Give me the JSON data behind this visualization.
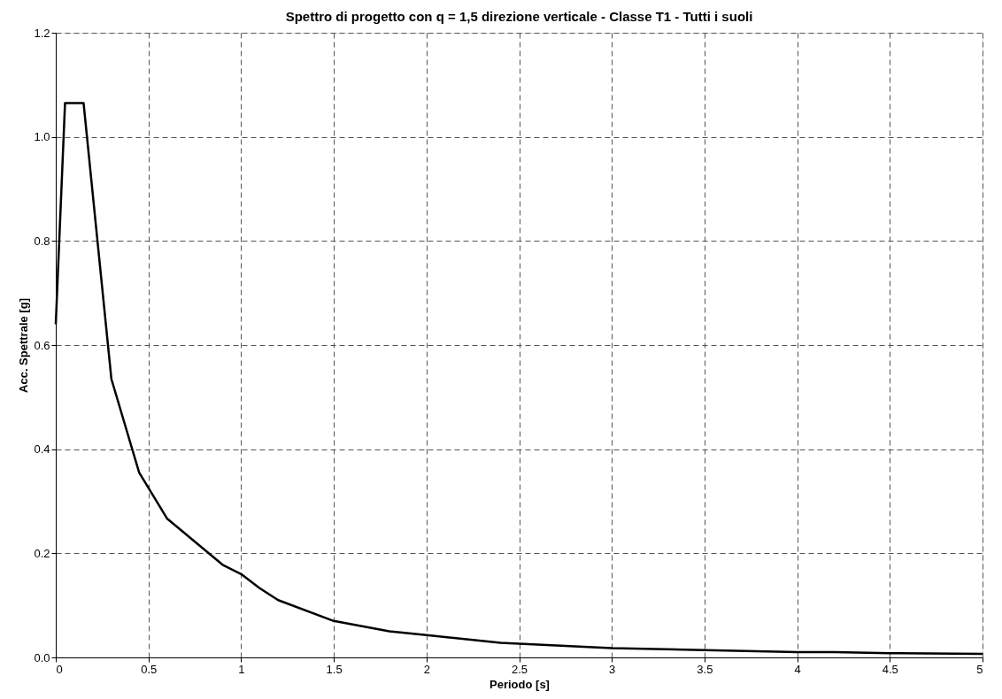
{
  "chart_data": {
    "type": "line",
    "title": "Spettro di progetto con q = 1,5 direzione verticale - Classe T1 - Tutti i suoli",
    "xlabel": "Periodo [s]",
    "ylabel": "Acc. Spettrale [g]",
    "x": [
      0,
      0.05,
      0.15,
      0.3,
      0.45,
      0.6,
      0.9,
      1.0,
      1.1,
      1.2,
      1.5,
      1.8,
      2.0,
      2.4,
      3.0,
      3.5,
      4.0,
      4.2,
      4.5,
      5.0
    ],
    "series": [
      {
        "color": "#000000",
        "values": [
          0.64,
          1.065,
          1.065,
          0.535,
          0.355,
          0.267,
          0.178,
          0.16,
          0.133,
          0.11,
          0.07,
          0.05,
          0.043,
          0.028,
          0.018,
          0.014,
          0.01,
          0.01,
          0.008,
          0.007
        ]
      }
    ],
    "xlim": [
      0,
      5
    ],
    "xticks": [
      0,
      0.5,
      1,
      1.5,
      2,
      2.5,
      3,
      3.5,
      4,
      4.5,
      5
    ],
    "ylim": [
      0,
      1.2
    ],
    "yticks": [
      {
        "value": 0,
        "label": "0.0"
      },
      0.2,
      0.4,
      0.6,
      0.8,
      {
        "value": 1,
        "label": "1.0"
      },
      1.2
    ],
    "grid": true,
    "line_style": "solid",
    "marker": "none"
  }
}
